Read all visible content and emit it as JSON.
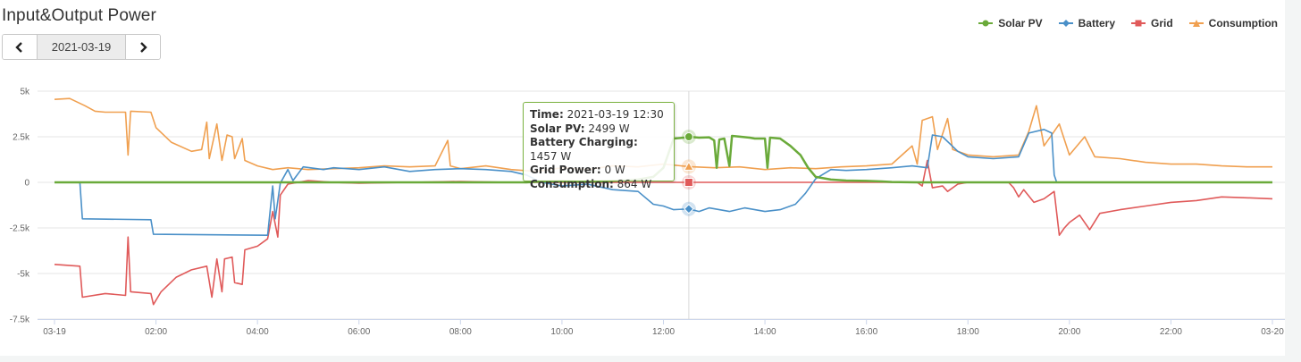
{
  "header": {
    "title": "Input&Output Power",
    "date": "2021-03-19"
  },
  "legend": [
    {
      "name": "Solar PV",
      "color": "#6aaa3a",
      "marker": "circle"
    },
    {
      "name": "Battery",
      "color": "#4a90c8",
      "marker": "diamond"
    },
    {
      "name": "Grid",
      "color": "#e05a5a",
      "marker": "square"
    },
    {
      "name": "Consumption",
      "color": "#f0a050",
      "marker": "triangle"
    }
  ],
  "tooltip": {
    "time_label": "Time:",
    "time_value": "2021-03-19 12:30",
    "solar_label": "Solar PV:",
    "solar_value": "2499 W",
    "battery_label": "Battery Charging:",
    "battery_value": "1457 W",
    "grid_label": "Grid Power:",
    "grid_value": "0 W",
    "consumption_label": "Consumption:",
    "consumption_value": "864 W"
  },
  "chart_data": {
    "type": "line",
    "title": "Input&Output Power",
    "x_ticks": [
      "03-19",
      "02:00",
      "04:00",
      "06:00",
      "08:00",
      "10:00",
      "12:00",
      "14:00",
      "16:00",
      "18:00",
      "20:00",
      "22:00",
      "03-20"
    ],
    "y_ticks": [
      "5k",
      "2.5k",
      "0",
      "-2.5k",
      "-5k",
      "-7.5k"
    ],
    "ylim": [
      -7500,
      5000
    ],
    "xlim_hours": [
      0,
      24
    ],
    "grid": true,
    "legend_position": "top-right",
    "series": [
      {
        "name": "Solar PV",
        "color": "#6aaa3a",
        "points": [
          [
            0,
            0
          ],
          [
            9.3,
            0
          ],
          [
            9.6,
            50
          ],
          [
            10,
            60
          ],
          [
            10.5,
            30
          ],
          [
            11,
            80
          ],
          [
            11.5,
            150
          ],
          [
            11.8,
            300
          ],
          [
            12.0,
            800
          ],
          [
            12.2,
            2400
          ],
          [
            12.4,
            2450
          ],
          [
            12.5,
            2499
          ],
          [
            12.7,
            2450
          ],
          [
            12.9,
            2470
          ],
          [
            13.0,
            2300
          ],
          [
            13.05,
            800
          ],
          [
            13.1,
            2350
          ],
          [
            13.2,
            2400
          ],
          [
            13.3,
            900
          ],
          [
            13.35,
            2550
          ],
          [
            13.7,
            2450
          ],
          [
            13.8,
            2400
          ],
          [
            14.0,
            2400
          ],
          [
            14.05,
            800
          ],
          [
            14.1,
            2450
          ],
          [
            14.3,
            2400
          ],
          [
            14.5,
            2000
          ],
          [
            14.7,
            1500
          ],
          [
            14.85,
            800
          ],
          [
            15.0,
            300
          ],
          [
            15.3,
            150
          ],
          [
            15.6,
            100
          ],
          [
            16.0,
            80
          ],
          [
            16.3,
            50
          ],
          [
            16.5,
            20
          ],
          [
            17.0,
            0
          ],
          [
            24,
            0
          ]
        ]
      },
      {
        "name": "Battery",
        "color": "#4a90c8",
        "points": [
          [
            0,
            0
          ],
          [
            0.5,
            0
          ],
          [
            0.55,
            -2000
          ],
          [
            1.9,
            -2050
          ],
          [
            1.95,
            -2850
          ],
          [
            4.2,
            -2900
          ],
          [
            4.3,
            -200
          ],
          [
            4.35,
            -2000
          ],
          [
            4.45,
            -50
          ],
          [
            4.6,
            700
          ],
          [
            4.7,
            100
          ],
          [
            4.9,
            850
          ],
          [
            5.3,
            700
          ],
          [
            5.5,
            800
          ],
          [
            6.0,
            700
          ],
          [
            6.5,
            850
          ],
          [
            7.0,
            600
          ],
          [
            7.5,
            700
          ],
          [
            8.0,
            750
          ],
          [
            8.5,
            700
          ],
          [
            9.0,
            600
          ],
          [
            9.3,
            400
          ],
          [
            9.6,
            0
          ],
          [
            10.0,
            -200
          ],
          [
            10.5,
            -100
          ],
          [
            11.0,
            -400
          ],
          [
            11.5,
            -500
          ],
          [
            11.8,
            -1200
          ],
          [
            12.0,
            -1300
          ],
          [
            12.2,
            -1500
          ],
          [
            12.5,
            -1457
          ],
          [
            12.7,
            -1600
          ],
          [
            12.9,
            -1400
          ],
          [
            13.1,
            -1500
          ],
          [
            13.3,
            -1600
          ],
          [
            13.6,
            -1400
          ],
          [
            14.0,
            -1600
          ],
          [
            14.3,
            -1500
          ],
          [
            14.6,
            -1200
          ],
          [
            14.8,
            -600
          ],
          [
            15.0,
            200
          ],
          [
            15.3,
            700
          ],
          [
            15.6,
            650
          ],
          [
            16.0,
            700
          ],
          [
            16.5,
            800
          ],
          [
            16.9,
            900
          ],
          [
            17.2,
            800
          ],
          [
            17.3,
            2600
          ],
          [
            17.5,
            2500
          ],
          [
            17.8,
            1700
          ],
          [
            18.0,
            1400
          ],
          [
            18.5,
            1300
          ],
          [
            19.0,
            1400
          ],
          [
            19.2,
            2700
          ],
          [
            19.5,
            2900
          ],
          [
            19.65,
            2700
          ],
          [
            19.7,
            400
          ],
          [
            19.75,
            0
          ],
          [
            24,
            0
          ]
        ]
      },
      {
        "name": "Grid",
        "color": "#e05a5a",
        "points": [
          [
            0,
            -4500
          ],
          [
            0.5,
            -4600
          ],
          [
            0.55,
            -6300
          ],
          [
            1.0,
            -6100
          ],
          [
            1.4,
            -6200
          ],
          [
            1.45,
            -3000
          ],
          [
            1.5,
            -6000
          ],
          [
            1.9,
            -6100
          ],
          [
            1.95,
            -6700
          ],
          [
            2.1,
            -6000
          ],
          [
            2.4,
            -5200
          ],
          [
            2.7,
            -4800
          ],
          [
            3.0,
            -4600
          ],
          [
            3.1,
            -6300
          ],
          [
            3.2,
            -4200
          ],
          [
            3.3,
            -6000
          ],
          [
            3.35,
            -4200
          ],
          [
            3.5,
            -4100
          ],
          [
            3.55,
            -5500
          ],
          [
            3.7,
            -5600
          ],
          [
            3.75,
            -3700
          ],
          [
            4.0,
            -3500
          ],
          [
            4.2,
            -3100
          ],
          [
            4.3,
            -1600
          ],
          [
            4.4,
            -3000
          ],
          [
            4.45,
            -700
          ],
          [
            4.6,
            -100
          ],
          [
            5.0,
            100
          ],
          [
            5.5,
            0
          ],
          [
            6.0,
            -50
          ],
          [
            7.0,
            0
          ],
          [
            8.0,
            50
          ],
          [
            9.0,
            0
          ],
          [
            12.0,
            0
          ],
          [
            12.5,
            0
          ],
          [
            14.0,
            0
          ],
          [
            16.0,
            0
          ],
          [
            17.0,
            0
          ],
          [
            17.1,
            -200
          ],
          [
            17.2,
            1200
          ],
          [
            17.3,
            -300
          ],
          [
            17.5,
            -200
          ],
          [
            17.6,
            -500
          ],
          [
            17.8,
            -100
          ],
          [
            18.0,
            0
          ],
          [
            18.8,
            0
          ],
          [
            18.9,
            -300
          ],
          [
            19.0,
            -800
          ],
          [
            19.1,
            -400
          ],
          [
            19.3,
            -1100
          ],
          [
            19.5,
            -900
          ],
          [
            19.7,
            -500
          ],
          [
            19.8,
            -2900
          ],
          [
            19.9,
            -2500
          ],
          [
            20.0,
            -2200
          ],
          [
            20.2,
            -1800
          ],
          [
            20.4,
            -2600
          ],
          [
            20.6,
            -1700
          ],
          [
            21.0,
            -1500
          ],
          [
            21.5,
            -1300
          ],
          [
            22.0,
            -1100
          ],
          [
            22.5,
            -1000
          ],
          [
            23.0,
            -800
          ],
          [
            23.5,
            -850
          ],
          [
            24,
            -900
          ]
        ]
      },
      {
        "name": "Consumption",
        "color": "#f0a050",
        "points": [
          [
            0,
            4550
          ],
          [
            0.3,
            4600
          ],
          [
            0.6,
            4200
          ],
          [
            0.8,
            3900
          ],
          [
            1.0,
            3850
          ],
          [
            1.4,
            3850
          ],
          [
            1.45,
            1500
          ],
          [
            1.5,
            3900
          ],
          [
            1.9,
            3850
          ],
          [
            2.0,
            3000
          ],
          [
            2.3,
            2200
          ],
          [
            2.7,
            1700
          ],
          [
            2.9,
            1800
          ],
          [
            3.0,
            3300
          ],
          [
            3.05,
            1300
          ],
          [
            3.2,
            3200
          ],
          [
            3.3,
            1200
          ],
          [
            3.4,
            2600
          ],
          [
            3.5,
            2500
          ],
          [
            3.55,
            1300
          ],
          [
            3.7,
            2400
          ],
          [
            3.75,
            1200
          ],
          [
            4.0,
            900
          ],
          [
            4.3,
            700
          ],
          [
            4.6,
            800
          ],
          [
            5.0,
            700
          ],
          [
            5.5,
            750
          ],
          [
            6.0,
            800
          ],
          [
            6.5,
            900
          ],
          [
            7.0,
            850
          ],
          [
            7.5,
            900
          ],
          [
            7.75,
            2300
          ],
          [
            7.8,
            900
          ],
          [
            8.0,
            750
          ],
          [
            8.5,
            900
          ],
          [
            9.0,
            700
          ],
          [
            9.5,
            600
          ],
          [
            10.0,
            800
          ],
          [
            10.5,
            700
          ],
          [
            11.0,
            900
          ],
          [
            11.5,
            850
          ],
          [
            12.0,
            1000
          ],
          [
            12.5,
            864
          ],
          [
            13.0,
            800
          ],
          [
            13.5,
            850
          ],
          [
            14.0,
            700
          ],
          [
            14.5,
            800
          ],
          [
            15.0,
            750
          ],
          [
            15.5,
            850
          ],
          [
            16.0,
            900
          ],
          [
            16.5,
            1000
          ],
          [
            16.9,
            2000
          ],
          [
            17.0,
            1000
          ],
          [
            17.1,
            3400
          ],
          [
            17.3,
            3600
          ],
          [
            17.4,
            1800
          ],
          [
            17.6,
            3500
          ],
          [
            17.7,
            1800
          ],
          [
            18.0,
            1500
          ],
          [
            18.5,
            1400
          ],
          [
            19.0,
            1500
          ],
          [
            19.2,
            2800
          ],
          [
            19.35,
            4200
          ],
          [
            19.5,
            2000
          ],
          [
            19.7,
            2800
          ],
          [
            19.8,
            3200
          ],
          [
            20.0,
            1500
          ],
          [
            20.3,
            2500
          ],
          [
            20.5,
            1400
          ],
          [
            21.0,
            1300
          ],
          [
            21.5,
            1100
          ],
          [
            22.0,
            1000
          ],
          [
            22.5,
            1000
          ],
          [
            23.0,
            900
          ],
          [
            23.5,
            850
          ],
          [
            24,
            850
          ]
        ]
      }
    ],
    "hover_x_hours": 12.5
  }
}
